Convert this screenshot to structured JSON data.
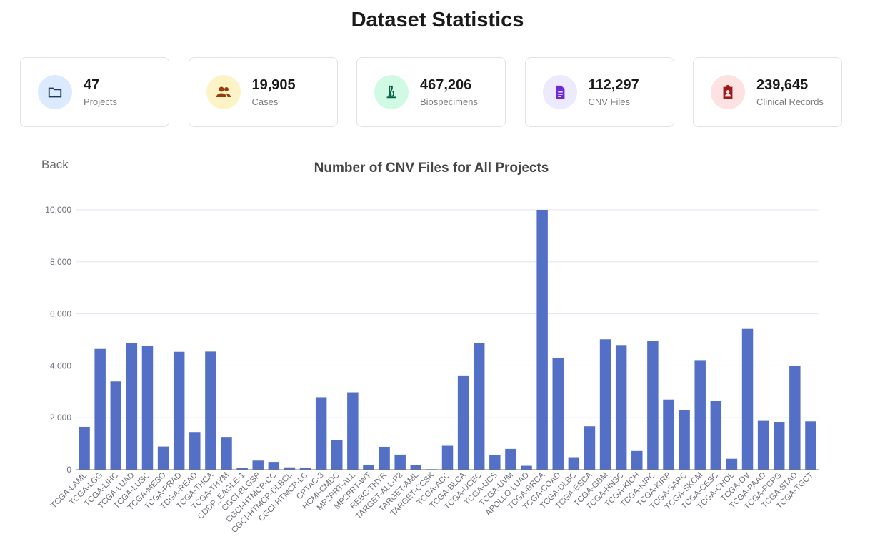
{
  "header": {
    "title": "Dataset Statistics"
  },
  "stats": [
    {
      "value": "47",
      "label": "Projects",
      "icon": "folder-icon",
      "bg": "#dbeafe",
      "fg": "#1e3a5f"
    },
    {
      "value": "19,905",
      "label": "Cases",
      "icon": "users-icon",
      "bg": "#fef3c7",
      "fg": "#92400e"
    },
    {
      "value": "467,206",
      "label": "Biospecimens",
      "icon": "microscope-icon",
      "bg": "#d1fae5",
      "fg": "#065f46"
    },
    {
      "value": "112,297",
      "label": "CNV Files",
      "icon": "file-icon",
      "bg": "#ede9fe",
      "fg": "#6d28d9"
    },
    {
      "value": "239,645",
      "label": "Clinical Records",
      "icon": "clipboard-user-icon",
      "bg": "#fee2e2",
      "fg": "#991b1b"
    }
  ],
  "back_label": "Back",
  "colors": {
    "bar": "#5470c6",
    "grid": "#e0e6f1",
    "axis": "#6e7079"
  },
  "chart_data": {
    "type": "bar",
    "title": "Number of CNV Files for All Projects",
    "xlabel": "",
    "ylabel": "",
    "ylim": [
      0,
      10000
    ],
    "yticks": [
      0,
      2000,
      4000,
      6000,
      8000,
      10000
    ],
    "ytick_labels": [
      "0",
      "2,000",
      "4,000",
      "6,000",
      "8,000",
      "10,000"
    ],
    "grid": true,
    "categories": [
      "TCGA-LAML",
      "TCGA-LGG",
      "TCGA-LIHC",
      "TCGA-LUAD",
      "TCGA-LUSC",
      "TCGA-MESO",
      "TCGA-PRAD",
      "TCGA-READ",
      "TCGA-THCA",
      "TCGA-THYM",
      "CDDP_EAGLE-1",
      "CGCI-BLGSP",
      "CGCI-HTMCP-CC",
      "CGCI-HTMCP-DLBCL",
      "CGCI-HTMCP-LC",
      "CPTAC-3",
      "HCMI-CMDC",
      "MP2PRT-ALL",
      "MP2PRT-WT",
      "REBC-THYR",
      "TARGET-ALL-P2",
      "TARGET-AML",
      "TARGET-CCSK",
      "TCGA-ACC",
      "TCGA-BLCA",
      "TCGA-UCEC",
      "TCGA-UCS",
      "TCGA-UVM",
      "APOLLO-LUAD",
      "TCGA-BRCA",
      "TCGA-COAD",
      "TCGA-DLBC",
      "TCGA-ESCA",
      "TCGA-GBM",
      "TCGA-HNSC",
      "TCGA-KICH",
      "TCGA-KIRC",
      "TCGA-KIRP",
      "TCGA-SARC",
      "TCGA-SKCM",
      "TCGA-CESC",
      "TCGA-CHOL",
      "TCGA-OV",
      "TCGA-PAAD",
      "TCGA-PCPG",
      "TCGA-STAD",
      "TCGA-TGCT"
    ],
    "values": [
      1650,
      4650,
      3400,
      4890,
      4760,
      890,
      4540,
      1450,
      4550,
      1260,
      80,
      350,
      300,
      90,
      60,
      2790,
      1130,
      2980,
      190,
      880,
      580,
      170,
      20,
      920,
      3630,
      4880,
      550,
      800,
      150,
      10050,
      4300,
      480,
      1670,
      5020,
      4800,
      720,
      4970,
      2700,
      2300,
      4220,
      2650,
      420,
      5420,
      1880,
      1840,
      4000,
      1860
    ]
  }
}
